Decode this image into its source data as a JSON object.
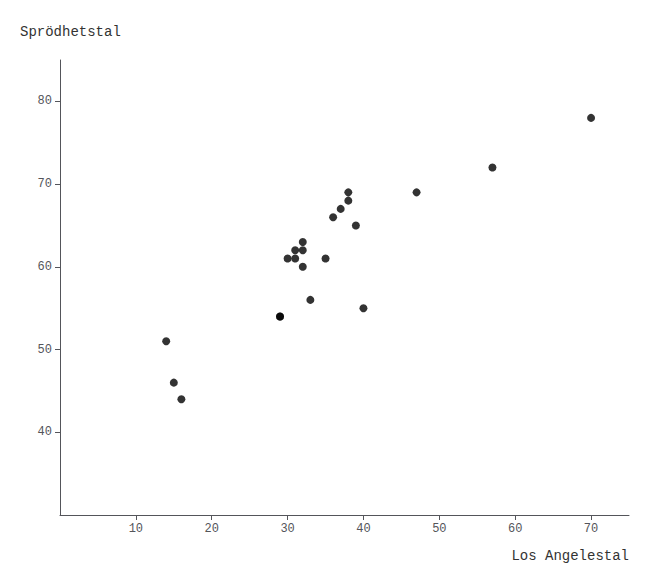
{
  "chart_data": {
    "type": "scatter",
    "x": [
      14,
      15,
      16,
      29,
      29,
      30,
      31,
      31,
      32,
      32,
      32,
      33,
      35,
      36,
      37,
      38,
      38,
      39,
      40,
      47,
      57,
      70
    ],
    "values": [
      51,
      46,
      44,
      54,
      54,
      61,
      62,
      61,
      63,
      62,
      60,
      56,
      61,
      66,
      67,
      69,
      68,
      65,
      55,
      69,
      72,
      78
    ],
    "xlabel": "Los Angelestal",
    "ylabel": "Sprödhetstal",
    "xlim": [
      0,
      75
    ],
    "ylim": [
      30,
      85
    ],
    "xticks": [
      10,
      20,
      30,
      40,
      50,
      60,
      70
    ],
    "yticks": [
      40,
      50,
      60,
      70,
      80
    ],
    "color": "black",
    "marker": "circle",
    "grid": false
  }
}
